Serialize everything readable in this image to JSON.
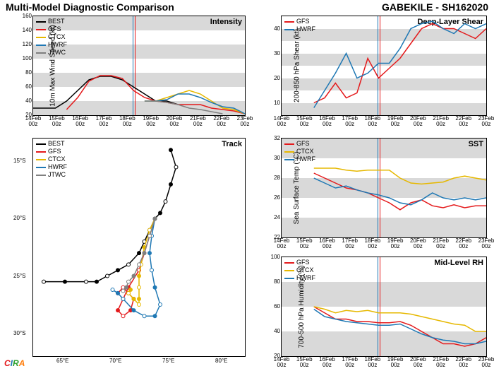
{
  "header": {
    "title": "Multi-Model Diagnostic Comparison",
    "storm_id": "GABEKILE - SH162020"
  },
  "logo": "CIRA",
  "colors": {
    "BEST": "#000000",
    "GFS": "#e41a1c",
    "CTCX": "#e6b800",
    "HWRF": "#1f78b4",
    "JTWC": "#808080",
    "band": "#d9d9d9",
    "vline_a": "#1f78b4",
    "vline_b": "#e41a1c",
    "bg": "#ffffff"
  },
  "x_ticks": [
    "14Feb 00z",
    "15Feb 00z",
    "16Feb 00z",
    "17Feb 00z",
    "18Feb 00z",
    "19Feb 00z",
    "20Feb 00z",
    "21Feb 00z",
    "22Feb 00z",
    "23Feb 00z"
  ],
  "intensity": {
    "title": "Intensity",
    "ylabel": "10m Max Wind Speed (kt)",
    "ylim": [
      20,
      160
    ],
    "ytick_step": 20,
    "bands": [
      [
        20,
        40
      ],
      [
        60,
        80
      ],
      [
        100,
        120
      ],
      [
        140,
        160
      ]
    ],
    "legend": [
      "BEST",
      "GFS",
      "CTCX",
      "HWRF",
      "JTWC"
    ],
    "series": {
      "BEST": [
        30,
        30,
        30,
        40,
        55,
        70,
        75,
        75,
        70,
        60,
        50,
        40,
        40,
        35
      ],
      "GFS": [
        null,
        null,
        null,
        28,
        45,
        68,
        76,
        76,
        72,
        55,
        45,
        40,
        38,
        35,
        35,
        35,
        30,
        28,
        26,
        22
      ],
      "CTCX": [
        null,
        null,
        null,
        null,
        null,
        null,
        null,
        null,
        null,
        null,
        40,
        40,
        45,
        50,
        55,
        50,
        40,
        30,
        28,
        22
      ],
      "HWRF": [
        null,
        null,
        null,
        null,
        null,
        null,
        null,
        null,
        null,
        null,
        40,
        40,
        42,
        50,
        50,
        45,
        38,
        32,
        30,
        22
      ],
      "JTWC": [
        null,
        null,
        null,
        null,
        null,
        null,
        null,
        null,
        null,
        null,
        40,
        40,
        38,
        35,
        30,
        28,
        25,
        22
      ]
    },
    "vlines": [
      0.47,
      0.48
    ]
  },
  "shear": {
    "title": "Deep-Layer Shear",
    "ylabel": "200-850 hPa Shear (kt)",
    "ylim": [
      5,
      45
    ],
    "ytick": [
      10,
      20,
      30,
      40
    ],
    "bands": [
      [
        5,
        10
      ],
      [
        15,
        20
      ],
      [
        25,
        30
      ],
      [
        35,
        40
      ]
    ],
    "legend": [
      "GFS",
      "HWRF"
    ],
    "series": {
      "GFS": [
        null,
        null,
        null,
        10,
        12,
        18,
        12,
        14,
        28,
        20,
        24,
        28,
        34,
        40,
        42,
        40,
        40,
        38,
        36,
        40
      ],
      "HWRF": [
        null,
        null,
        null,
        8,
        15,
        22,
        30,
        20,
        22,
        26,
        26,
        32,
        40,
        42,
        43,
        40,
        38,
        42,
        40,
        42
      ]
    },
    "vlines": [
      0.47,
      0.48
    ]
  },
  "sst": {
    "title": "SST",
    "ylabel": "Sea Surface Temp (°C)",
    "ylim": [
      22,
      32
    ],
    "ytick_step": 2,
    "bands": [
      [
        22,
        24
      ],
      [
        26,
        28
      ],
      [
        30,
        32
      ]
    ],
    "legend": [
      "GFS",
      "CTCX",
      "HWRF"
    ],
    "series": {
      "GFS": [
        null,
        null,
        null,
        28.5,
        28,
        27.5,
        27,
        26.8,
        26.5,
        26,
        25.5,
        24.8,
        25.5,
        25.8,
        25.2,
        25.0,
        25.3,
        25.0,
        25.2,
        25.2
      ],
      "CTCX": [
        null,
        null,
        null,
        29,
        29,
        29,
        28.8,
        28.7,
        28.8,
        28.8,
        28.8,
        28,
        27.5,
        27.4,
        27.5,
        27.6,
        28,
        28.2,
        28.0,
        27.8
      ],
      "HWRF": [
        null,
        null,
        null,
        28,
        27.5,
        27,
        27.2,
        26.8,
        26.5,
        26.3,
        26,
        25.5,
        25.3,
        25.8,
        26.5,
        26,
        25.8,
        26,
        25.8,
        26.0
      ]
    },
    "vlines": [
      0.47,
      0.48
    ]
  },
  "rh": {
    "title": "Mid-Level RH",
    "ylabel": "700-500 hPa Humidity (%)",
    "ylim": [
      20,
      100
    ],
    "ytick_step": 20,
    "bands": [
      [
        20,
        40
      ],
      [
        60,
        80
      ]
    ],
    "legend": [
      "GFS",
      "CTCX",
      "HWRF"
    ],
    "series": {
      "GFS": [
        null,
        null,
        null,
        60,
        55,
        50,
        50,
        48,
        48,
        47,
        47,
        48,
        45,
        40,
        35,
        30,
        30,
        28,
        30,
        35
      ],
      "CTCX": [
        null,
        null,
        null,
        60,
        58,
        55,
        57,
        56,
        57,
        55,
        55,
        55,
        54,
        52,
        50,
        48,
        46,
        45,
        40,
        40
      ],
      "HWRF": [
        null,
        null,
        null,
        58,
        52,
        50,
        48,
        47,
        46,
        45,
        45,
        46,
        42,
        38,
        35,
        33,
        32,
        30,
        30,
        32
      ]
    },
    "vlines": [
      0.47,
      0.48
    ]
  },
  "track": {
    "title": "Track",
    "xlim": [
      62,
      82
    ],
    "xtick_step": 5,
    "xsuffix": "°E",
    "ylim": [
      32,
      13
    ],
    "yticks": [
      15,
      20,
      25,
      30
    ],
    "ysuffix": "°S",
    "legend": [
      "BEST",
      "GFS",
      "CTCX",
      "HWRF",
      "JTWC"
    ],
    "paths": {
      "BEST": [
        [
          75,
          14
        ],
        [
          75.5,
          15.5
        ],
        [
          75,
          17
        ],
        [
          74.5,
          18.5
        ],
        [
          74,
          19.5
        ],
        [
          73.5,
          20
        ],
        [
          73,
          21
        ],
        [
          72.5,
          22
        ],
        [
          72,
          23
        ],
        [
          71,
          24
        ],
        [
          70,
          24.5
        ],
        [
          69,
          25
        ],
        [
          68,
          25.5
        ],
        [
          67,
          25.5
        ],
        [
          65,
          25.5
        ],
        [
          63,
          25.5
        ]
      ],
      "GFS": [
        [
          73.5,
          20
        ],
        [
          73,
          21.5
        ],
        [
          72.5,
          23
        ],
        [
          72,
          24.5
        ],
        [
          71,
          26
        ],
        [
          70.5,
          27
        ],
        [
          70,
          28
        ],
        [
          70.5,
          28.5
        ],
        [
          71.2,
          28
        ],
        [
          71.5,
          27
        ],
        [
          71,
          26.5
        ],
        [
          70.5,
          26
        ],
        [
          70,
          26.5
        ]
      ],
      "CTCX": [
        [
          73.5,
          20
        ],
        [
          73,
          21
        ],
        [
          72.5,
          22.5
        ],
        [
          72.2,
          24
        ],
        [
          72,
          25
        ],
        [
          72,
          26
        ],
        [
          72,
          27
        ],
        [
          72,
          27.5
        ],
        [
          71.5,
          27
        ],
        [
          71,
          26.5
        ],
        [
          71.2,
          26.2
        ]
      ],
      "HWRF": [
        [
          73.5,
          20
        ],
        [
          73.2,
          21.5
        ],
        [
          73,
          23
        ],
        [
          73.2,
          24.5
        ],
        [
          73.5,
          26
        ],
        [
          74,
          27.5
        ],
        [
          73.5,
          28.5
        ],
        [
          72.5,
          28.5
        ],
        [
          71.5,
          28
        ],
        [
          70.5,
          27
        ],
        [
          70,
          26.5
        ],
        [
          69.5,
          26.2
        ]
      ],
      "JTWC": [
        [
          73.5,
          20
        ],
        [
          73,
          21.5
        ],
        [
          72.5,
          23
        ],
        [
          72,
          24
        ],
        [
          71.5,
          25
        ],
        [
          71,
          25.5
        ],
        [
          70.8,
          26
        ],
        [
          70.5,
          26.3
        ]
      ]
    }
  }
}
